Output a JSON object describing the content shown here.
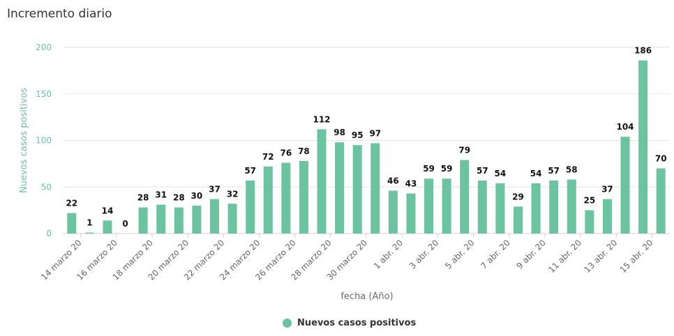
{
  "chart_data": {
    "type": "bar",
    "title": "Incremento diario",
    "xlabel": "fecha (Año)",
    "ylabel": "Nuevos casos positivos",
    "ylim": [
      0,
      200
    ],
    "yticks": [
      0,
      50,
      100,
      150,
      200
    ],
    "color": "#6cc3a0",
    "series": [
      {
        "name": "Nuevos casos positivos",
        "values": [
          22,
          1,
          14,
          0,
          28,
          31,
          28,
          30,
          37,
          32,
          57,
          72,
          76,
          78,
          112,
          98,
          95,
          97,
          46,
          43,
          59,
          59,
          79,
          57,
          54,
          29,
          54,
          57,
          58,
          25,
          37,
          104,
          186,
          70
        ]
      }
    ],
    "x_tick_labels": [
      "14 marzo 20",
      "16 marzo 20",
      "18 marzo 20",
      "20 marzo 20",
      "22 marzo 20",
      "24 marzo 20",
      "26 marzo 20",
      "28 marzo 20",
      "30 marzo 20",
      "1 abr. 20",
      "3 abr. 20",
      "5 abr. 20",
      "7 abr. 20",
      "9 abr. 20",
      "11 abr. 20",
      "13 abr. 20",
      "15 abr. 20"
    ],
    "legend": {
      "label": "Nuevos casos positivos",
      "position": "bottom"
    }
  }
}
